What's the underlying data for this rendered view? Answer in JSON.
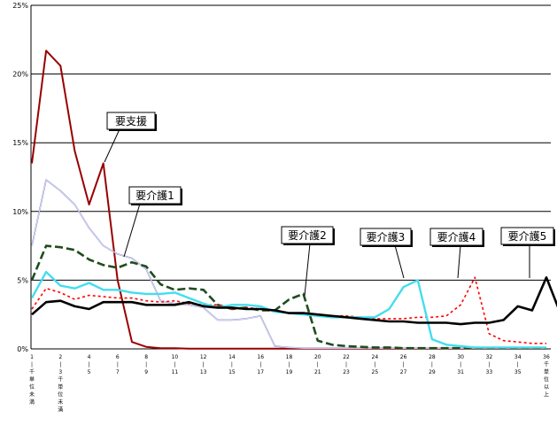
{
  "chart_data": {
    "type": "line",
    "title": "",
    "xlabel": "",
    "ylabel": "",
    "ylim": [
      0,
      25
    ],
    "yticks": [
      "0%",
      "5%",
      "10%",
      "15%",
      "20%",
      "25%"
    ],
    "grid": true,
    "x": [
      0,
      1,
      2,
      3,
      4,
      5,
      6,
      7,
      8,
      9,
      10,
      11,
      12,
      13,
      14,
      15,
      16,
      17,
      18,
      19,
      20,
      21,
      22,
      23,
      24,
      25,
      26,
      27,
      28,
      29,
      30,
      31,
      32,
      33,
      34,
      35,
      36
    ],
    "xtick_labels": [
      {
        "x": 0,
        "lines": [
          "1",
          "|",
          "千",
          "単",
          "位",
          "未",
          "満"
        ]
      },
      {
        "x": 2,
        "lines": [
          "2",
          "|",
          "3",
          "千",
          "単",
          "位",
          "未",
          "満"
        ]
      },
      {
        "x": 4,
        "lines": [
          "4",
          "|",
          "5"
        ]
      },
      {
        "x": 6,
        "lines": [
          "6",
          "|",
          "7"
        ]
      },
      {
        "x": 8,
        "lines": [
          "8",
          "|",
          "9"
        ]
      },
      {
        "x": 10,
        "lines": [
          "10",
          "|",
          "11"
        ]
      },
      {
        "x": 12,
        "lines": [
          "12",
          "|",
          "13"
        ]
      },
      {
        "x": 14,
        "lines": [
          "14",
          "|",
          "15"
        ]
      },
      {
        "x": 16,
        "lines": [
          "16",
          "|",
          "17"
        ]
      },
      {
        "x": 18,
        "lines": [
          "18",
          "|",
          "19"
        ]
      },
      {
        "x": 20,
        "lines": [
          "20",
          "|",
          "21"
        ]
      },
      {
        "x": 22,
        "lines": [
          "22",
          "|",
          "23"
        ]
      },
      {
        "x": 24,
        "lines": [
          "24",
          "|",
          "25"
        ]
      },
      {
        "x": 26,
        "lines": [
          "26",
          "|",
          "27"
        ]
      },
      {
        "x": 28,
        "lines": [
          "28",
          "|",
          "29"
        ]
      },
      {
        "x": 30,
        "lines": [
          "30",
          "|",
          "31"
        ]
      },
      {
        "x": 32,
        "lines": [
          "32",
          "|",
          "33"
        ]
      },
      {
        "x": 34,
        "lines": [
          "34",
          "|",
          "35"
        ]
      },
      {
        "x": 36,
        "lines": [
          "36",
          "千",
          "単",
          "位",
          "以",
          "上"
        ]
      }
    ],
    "series": [
      {
        "name": "要支援",
        "color": "#990000",
        "dash": "solid",
        "values": [
          13.5,
          21.7,
          20.6,
          14.4,
          10.5,
          13.5,
          5.0,
          0.5,
          0.15,
          0.05,
          0.05,
          0.02,
          0.02,
          0.02,
          0.02,
          0.02,
          0.02,
          0.02,
          0.02,
          0.02,
          0.02,
          0.02,
          0.02,
          0.02,
          0.02,
          0.02,
          0.02,
          0.02,
          0.02,
          0.02,
          0.02,
          0.02,
          0.02,
          0.02,
          0.02,
          0.02,
          0.02
        ]
      },
      {
        "name": "",
        "color": "#8888cc",
        "dash": "solid",
        "values": [
          7.5,
          12.3,
          11.5,
          10.5,
          8.8,
          7.5,
          6.9,
          6.6,
          5.8,
          3.5,
          3.3,
          3.2,
          3.0,
          2.1,
          2.1,
          2.2,
          2.4,
          0.2,
          0.1,
          0.05,
          0.05,
          0.05,
          0.05,
          0.05,
          0.05,
          0.05,
          0.05,
          0.05,
          0.05,
          0.05,
          0.05,
          0.05,
          0.05,
          0.05,
          0.05,
          0.05,
          0.05
        ]
      },
      {
        "name": "要介護1",
        "color": "#1f4d1f",
        "dash": "dash",
        "values": [
          5.0,
          7.5,
          7.4,
          7.2,
          6.5,
          6.1,
          5.9,
          6.3,
          6.0,
          4.7,
          4.3,
          4.4,
          4.3,
          3.2,
          2.9,
          3.0,
          2.8,
          2.8,
          3.6,
          4.0,
          0.6,
          0.3,
          0.2,
          0.15,
          0.1,
          0.1,
          0.05,
          0.05,
          0.05,
          0.05,
          0.05,
          0.05,
          0.05,
          0.05,
          0.05,
          0.05,
          0.05
        ]
      },
      {
        "name": "要介護2",
        "color": "#ff0000",
        "dash": "dot",
        "values": [
          2.9,
          4.4,
          4.1,
          3.6,
          3.9,
          3.8,
          3.7,
          3.7,
          3.5,
          3.4,
          3.5,
          3.3,
          3.2,
          3.2,
          2.9,
          3.0,
          2.9,
          2.7,
          2.6,
          2.5,
          2.5,
          2.4,
          2.4,
          2.3,
          2.2,
          2.2,
          2.2,
          2.3,
          2.3,
          2.4,
          3.2,
          5.2,
          1.1,
          0.6,
          0.5,
          0.4,
          0.4
        ]
      },
      {
        "name": "要介護3",
        "color": "#44ddee",
        "dash": "solid",
        "values": [
          3.7,
          5.6,
          4.6,
          4.4,
          4.8,
          4.3,
          4.3,
          4.1,
          4.0,
          4.0,
          4.1,
          3.7,
          3.3,
          3.0,
          3.2,
          3.2,
          3.1,
          2.7,
          2.6,
          2.5,
          2.4,
          2.3,
          2.3,
          2.3,
          2.3,
          2.9,
          4.5,
          5.0,
          0.7,
          0.3,
          0.2,
          0.1,
          0.1,
          0.1,
          0.1,
          0.1,
          0.1
        ]
      },
      {
        "name": "要介護4",
        "color": "#000000",
        "dash": "solid",
        "values": [
          2.5,
          3.4,
          3.5,
          3.1,
          2.9,
          3.4,
          3.4,
          3.4,
          3.2,
          3.2,
          3.2,
          3.4,
          3.1,
          3.0,
          3.0,
          2.9,
          2.9,
          2.8,
          2.6,
          2.6,
          2.5,
          2.4,
          2.3,
          2.2,
          2.1,
          2.0,
          2.0,
          1.9,
          1.9,
          1.9,
          1.8,
          1.9,
          1.9,
          2.1,
          3.1,
          2.8,
          5.2
        ]
      }
    ],
    "extra_series_tail": {
      "after_last": 2.9
    },
    "callouts": [
      {
        "text": "要支援"
      },
      {
        "text": "要介護1"
      },
      {
        "text": "要介護2"
      },
      {
        "text": "要介護3"
      },
      {
        "text": "要介護4"
      },
      {
        "text": "要介護5"
      }
    ]
  }
}
